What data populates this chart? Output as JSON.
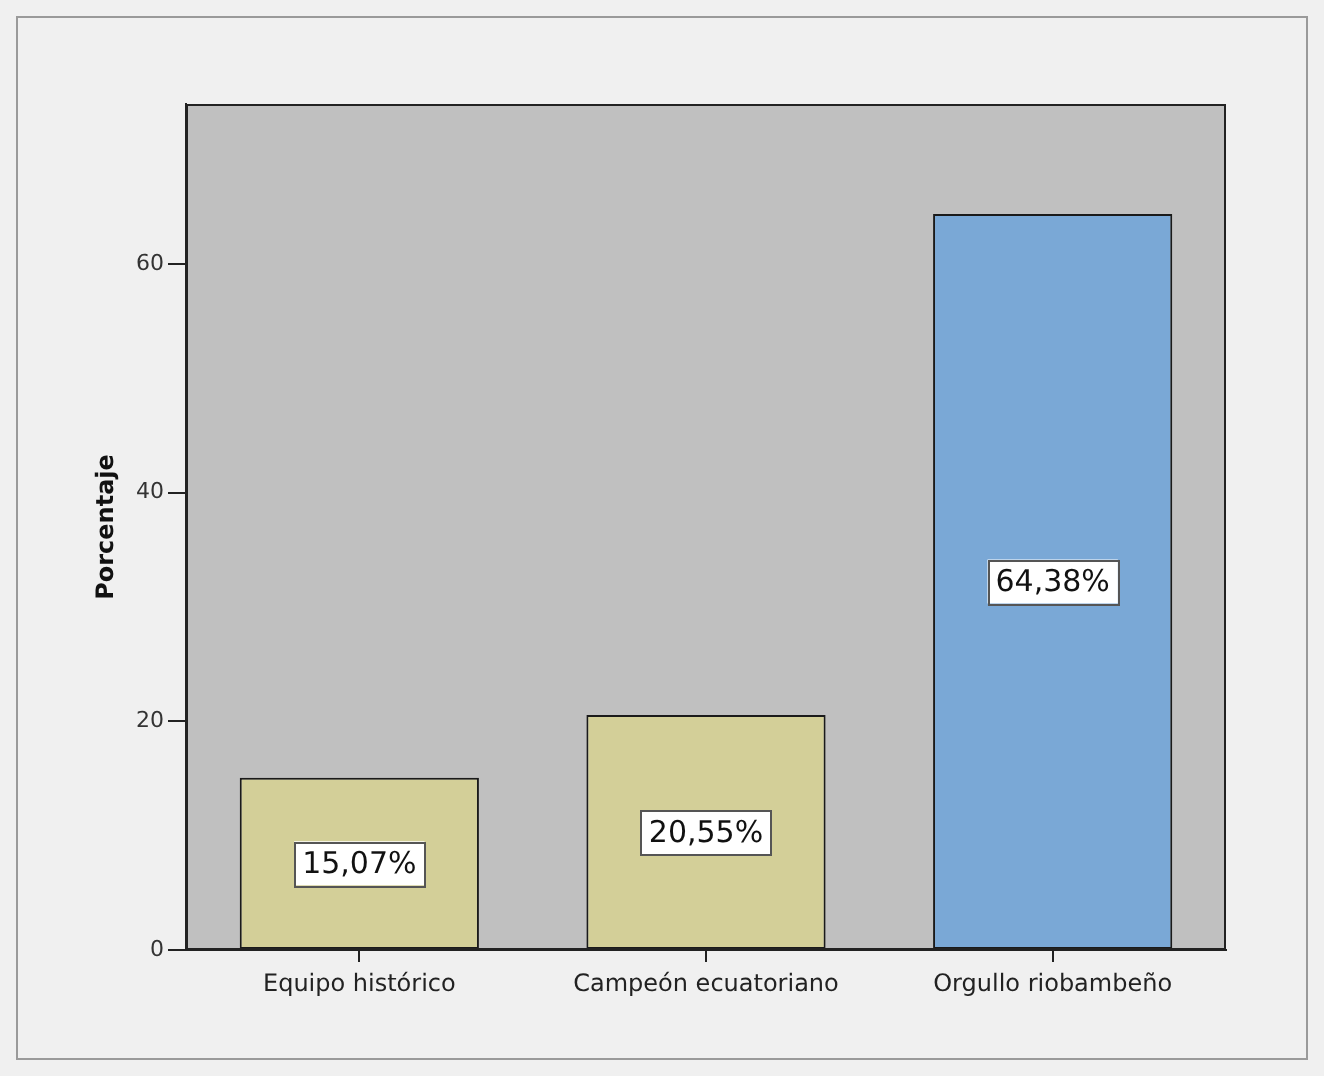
{
  "chart_data": {
    "type": "bar",
    "ylabel": "Porcentaje",
    "categories": [
      "Equipo histórico",
      "Campeón ecuatoriano",
      "Orgullo riobambeño"
    ],
    "values": [
      15.07,
      20.55,
      64.38
    ],
    "colors": [
      "#d3cf98",
      "#d3cf98",
      "#7aa8d6"
    ],
    "value_labels": [
      "15,07%",
      "20,55%",
      "64,38%"
    ],
    "ylim": [
      0,
      74
    ],
    "yticks": [
      0,
      20,
      40,
      60
    ],
    "grid": false,
    "legend": false
  }
}
